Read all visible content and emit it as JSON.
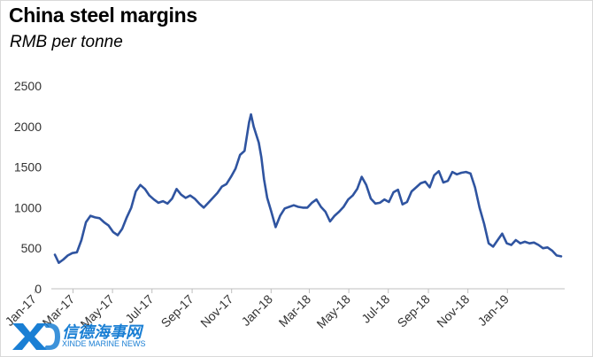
{
  "chart_data": {
    "type": "line",
    "title": "China steel margins",
    "subtitle": "RMB per tonne",
    "xlabel": "",
    "ylabel": "",
    "ylim": [
      0,
      2500
    ],
    "yticks": [
      0,
      500,
      1000,
      1500,
      2000,
      2500
    ],
    "xlim": [
      "2017-02-01",
      "2019-03-25"
    ],
    "xtick_labels": [
      "Jan-17",
      "Mar-17",
      "May-17",
      "Jul-17",
      "Sep-17",
      "Nov-17",
      "Jan-18",
      "Mar-18",
      "May-18",
      "Jul-18",
      "Sep-18",
      "Nov-18",
      "Jan-19"
    ],
    "xtick_dates": [
      "2017-01-01",
      "2017-03-01",
      "2017-05-01",
      "2017-07-01",
      "2017-09-01",
      "2017-11-01",
      "2018-01-01",
      "2018-03-01",
      "2018-05-01",
      "2018-07-01",
      "2018-09-01",
      "2018-11-01",
      "2019-01-01"
    ],
    "grid": false,
    "legend": "none",
    "line_color": "#2f54a0",
    "series": [
      {
        "name": "",
        "x": [
          "2017-02-01",
          "2017-02-07",
          "2017-02-14",
          "2017-02-21",
          "2017-02-28",
          "2017-03-07",
          "2017-03-14",
          "2017-03-21",
          "2017-03-28",
          "2017-04-04",
          "2017-04-11",
          "2017-04-18",
          "2017-04-25",
          "2017-05-02",
          "2017-05-09",
          "2017-05-16",
          "2017-05-23",
          "2017-05-30",
          "2017-06-06",
          "2017-06-13",
          "2017-06-20",
          "2017-06-27",
          "2017-07-04",
          "2017-07-11",
          "2017-07-18",
          "2017-07-25",
          "2017-08-01",
          "2017-08-08",
          "2017-08-15",
          "2017-08-22",
          "2017-08-29",
          "2017-09-05",
          "2017-09-12",
          "2017-09-19",
          "2017-09-26",
          "2017-10-03",
          "2017-10-10",
          "2017-10-17",
          "2017-10-24",
          "2017-10-31",
          "2017-11-07",
          "2017-11-14",
          "2017-11-21",
          "2017-11-28",
          "2017-12-01",
          "2017-12-05",
          "2017-12-09",
          "2017-12-13",
          "2017-12-17",
          "2017-12-21",
          "2017-12-26",
          "2018-01-01",
          "2018-01-08",
          "2018-01-15",
          "2018-01-22",
          "2018-01-29",
          "2018-02-05",
          "2018-02-12",
          "2018-02-19",
          "2018-02-26",
          "2018-03-05",
          "2018-03-12",
          "2018-03-19",
          "2018-03-26",
          "2018-04-02",
          "2018-04-09",
          "2018-04-16",
          "2018-04-23",
          "2018-04-30",
          "2018-05-07",
          "2018-05-14",
          "2018-05-21",
          "2018-05-28",
          "2018-06-04",
          "2018-06-11",
          "2018-06-18",
          "2018-06-25",
          "2018-07-02",
          "2018-07-09",
          "2018-07-16",
          "2018-07-23",
          "2018-07-30",
          "2018-08-06",
          "2018-08-13",
          "2018-08-20",
          "2018-08-27",
          "2018-09-03",
          "2018-09-10",
          "2018-09-17",
          "2018-09-24",
          "2018-10-01",
          "2018-10-08",
          "2018-10-15",
          "2018-10-22",
          "2018-10-29",
          "2018-11-05",
          "2018-11-12",
          "2018-11-19",
          "2018-11-26",
          "2018-12-03",
          "2018-12-10",
          "2018-12-17",
          "2018-12-24",
          "2018-12-31",
          "2019-01-07",
          "2019-01-14",
          "2019-01-21",
          "2019-01-28",
          "2019-02-04",
          "2019-02-11",
          "2019-02-18",
          "2019-02-25",
          "2019-03-04",
          "2019-03-11",
          "2019-03-18",
          "2019-03-25"
        ],
        "values": [
          420,
          320,
          360,
          410,
          440,
          450,
          600,
          820,
          900,
          880,
          870,
          820,
          780,
          700,
          660,
          740,
          880,
          1000,
          1200,
          1280,
          1230,
          1150,
          1100,
          1060,
          1080,
          1050,
          1110,
          1230,
          1160,
          1120,
          1150,
          1110,
          1050,
          1000,
          1060,
          1120,
          1180,
          1260,
          1290,
          1380,
          1480,
          1650,
          1700,
          2050,
          2150,
          2000,
          1900,
          1800,
          1620,
          1350,
          1120,
          960,
          760,
          900,
          990,
          1010,
          1030,
          1010,
          1000,
          1000,
          1060,
          1100,
          1010,
          950,
          830,
          900,
          950,
          1010,
          1100,
          1150,
          1230,
          1380,
          1280,
          1110,
          1050,
          1060,
          1100,
          1070,
          1190,
          1220,
          1040,
          1070,
          1200,
          1250,
          1300,
          1320,
          1250,
          1400,
          1450,
          1310,
          1330,
          1440,
          1410,
          1430,
          1440,
          1420,
          1250,
          1000,
          800,
          560,
          520,
          600,
          680,
          560,
          540,
          600,
          560,
          580,
          560,
          570,
          540,
          500,
          510,
          470,
          410,
          400
        ]
      }
    ]
  },
  "watermark": {
    "mark": "XD",
    "cn_text": "信德海事网",
    "en_text": "XINDE MARINE NEWS",
    "color": "#1a7fd4"
  }
}
